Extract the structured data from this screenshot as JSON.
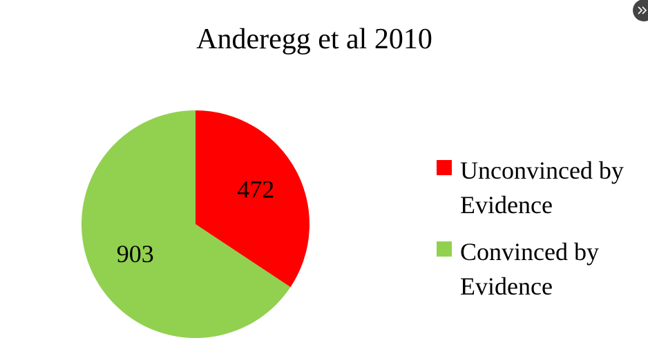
{
  "chart_data": {
    "type": "pie",
    "title": "Anderegg et al 2010",
    "categories": [
      "Unconvinced by Evidence",
      "Convinced by Evidence"
    ],
    "values": [
      472,
      903
    ],
    "colors": [
      "#ff0000",
      "#92d050"
    ]
  }
}
